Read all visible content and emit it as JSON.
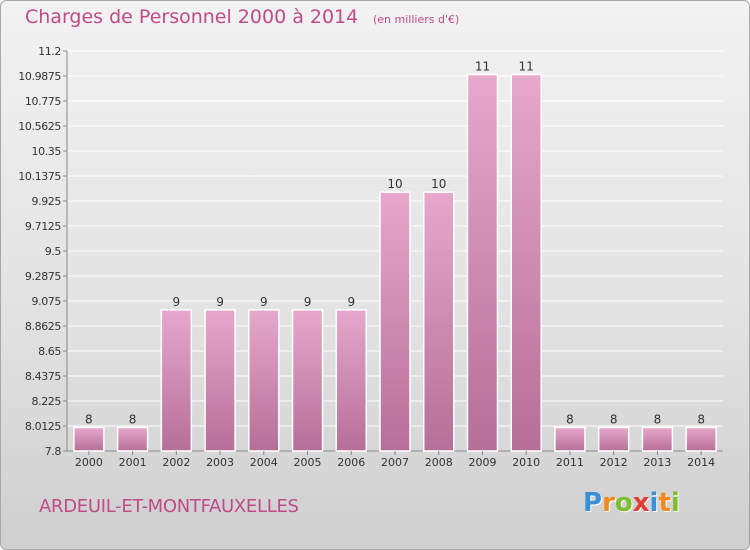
{
  "header": {
    "title": "Charges de Personnel 2000 à 2014",
    "unit": "(en milliers d'€)"
  },
  "footer": {
    "commune": "ARDEUIL-ET-MONTFAUXELLES",
    "logo_letters": [
      "P",
      "r",
      "o",
      "x",
      "i",
      "t",
      "i"
    ],
    "logo_colors": [
      "#3a8fd6",
      "#f08a1e",
      "#7cbf2e",
      "#e23c3c",
      "#3a8fd6",
      "#f08a1e",
      "#7cbf2e"
    ]
  },
  "colors": {
    "bar_top": "#e6a8cc",
    "bar_bottom": "#b66f98",
    "axis_text": "#333333",
    "grid": "#ffffff"
  },
  "chart_data": {
    "type": "bar",
    "categories": [
      "2000",
      "2001",
      "2002",
      "2003",
      "2004",
      "2005",
      "2006",
      "2007",
      "2008",
      "2009",
      "2010",
      "2011",
      "2012",
      "2013",
      "2014"
    ],
    "values": [
      8,
      8,
      9,
      9,
      9,
      9,
      9,
      10,
      10,
      11,
      11,
      8,
      8,
      8,
      8
    ],
    "ylim": [
      7.8,
      11.2
    ],
    "yticks": [
      "7.8",
      "8.0125",
      "8.225",
      "8.4375",
      "8.65",
      "8.8625",
      "9.075",
      "9.2875",
      "9.5",
      "9.7125",
      "9.925",
      "10.1375",
      "10.35",
      "10.5625",
      "10.775",
      "10.9875",
      "11.2"
    ],
    "grid": true,
    "title": "Charges de Personnel 2000 à 2014"
  }
}
